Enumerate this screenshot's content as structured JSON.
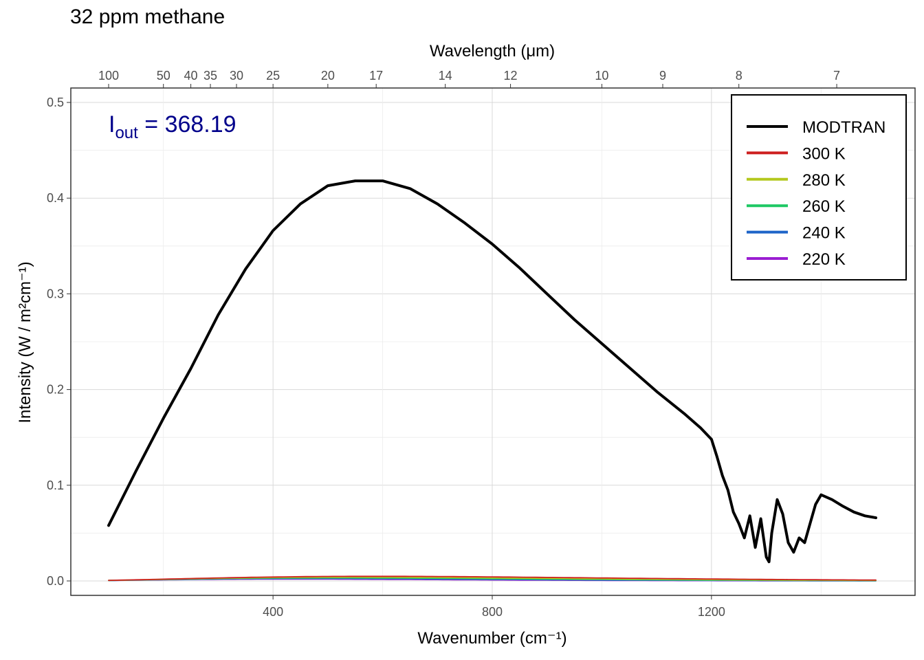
{
  "title": "32 ppm methane",
  "colors": {
    "MODTRAN": "#000000",
    "300 K": "#cd2020",
    "280 K": "#b4c81e",
    "260 K": "#1ec864",
    "240 K": "#1e64c8",
    "220 K": "#9b1ed2",
    "annotation": "#00008b"
  },
  "chart_data": {
    "type": "line",
    "title": "32 ppm methane",
    "xlabel": "Wavenumber (cm⁻¹)",
    "ylabel": "Intensity (W / m²cm⁻¹)",
    "x2label": "Wavelength (μm)",
    "xlim": [
      100,
      1500
    ],
    "ylim": [
      0,
      0.5
    ],
    "x_ticks": [
      400,
      800,
      1200
    ],
    "y_ticks": [
      0.0,
      0.1,
      0.2,
      0.3,
      0.4,
      0.5
    ],
    "y_tick_labels": [
      "0.0",
      "0.1",
      "0.2",
      "0.3",
      "0.4",
      "0.5"
    ],
    "x2_ticks": [
      100,
      50,
      40,
      35,
      30,
      25,
      20,
      17,
      14,
      12,
      10,
      9,
      8,
      7
    ],
    "grid": true,
    "legend": "top-right",
    "annotation": {
      "base": "I",
      "subscript": "out",
      "text": " = 368.19"
    },
    "series": [
      {
        "name": "MODTRAN",
        "x": [
          100,
          150,
          200,
          250,
          300,
          350,
          400,
          450,
          500,
          550,
          600,
          650,
          700,
          750,
          800,
          850,
          900,
          950,
          1000,
          1050,
          1100,
          1150,
          1180,
          1200,
          1210,
          1220,
          1230,
          1240,
          1250,
          1260,
          1270,
          1280,
          1290,
          1300,
          1305,
          1310,
          1320,
          1330,
          1340,
          1350,
          1360,
          1370,
          1380,
          1390,
          1400,
          1420,
          1440,
          1460,
          1480,
          1500
        ],
        "y": [
          0.058,
          0.115,
          0.17,
          0.222,
          0.278,
          0.326,
          0.366,
          0.394,
          0.413,
          0.418,
          0.418,
          0.41,
          0.394,
          0.374,
          0.352,
          0.327,
          0.3,
          0.273,
          0.248,
          0.223,
          0.198,
          0.175,
          0.16,
          0.148,
          0.13,
          0.11,
          0.095,
          0.072,
          0.06,
          0.045,
          0.068,
          0.035,
          0.065,
          0.025,
          0.02,
          0.05,
          0.085,
          0.07,
          0.04,
          0.03,
          0.045,
          0.04,
          0.06,
          0.08,
          0.09,
          0.085,
          0.078,
          0.072,
          0.068,
          0.066
        ]
      },
      {
        "name": "300 K",
        "temperature": 300
      },
      {
        "name": "280 K",
        "temperature": 280
      },
      {
        "name": "260 K",
        "temperature": 260
      },
      {
        "name": "240 K",
        "temperature": 240
      },
      {
        "name": "220 K",
        "temperature": 220
      }
    ]
  }
}
